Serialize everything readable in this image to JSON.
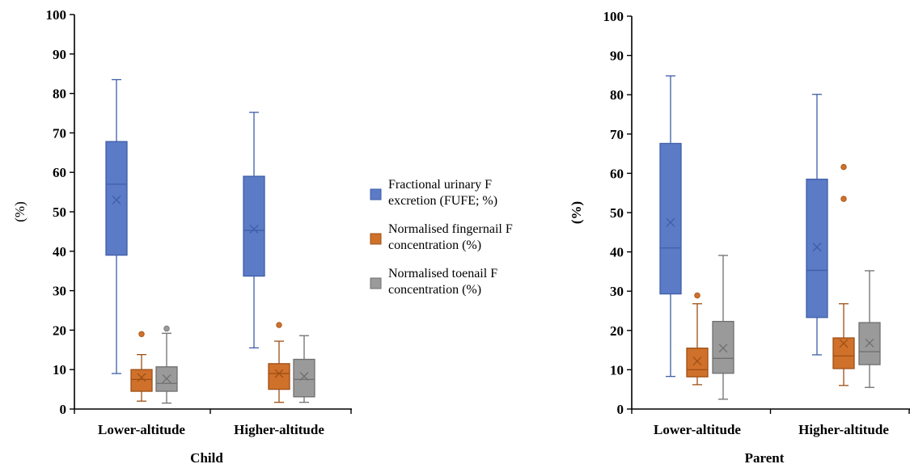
{
  "colors": {
    "series_fill": [
      "#5b7bc6",
      "#d0712b",
      "#9a9a9a"
    ],
    "series_stroke": [
      "#3f5ea8",
      "#9e4f14",
      "#6f6f6f"
    ],
    "axis": "#000000"
  },
  "legend": {
    "placement": "between-charts",
    "items": [
      [
        "Fractional urinary F",
        "excretion (FUFE; %)"
      ],
      [
        "Normalised fingernail F",
        "concentration (%)"
      ],
      [
        "Normalised toenail F",
        "concentration (%)"
      ]
    ]
  },
  "chart_data": [
    {
      "type": "box",
      "title": "",
      "xlabel": "Child",
      "ylabel": "(%)",
      "ylim": [
        0,
        100
      ],
      "yticks": [
        0,
        10,
        20,
        30,
        40,
        50,
        60,
        70,
        80,
        90,
        100
      ],
      "categories": [
        "Lower-altitude",
        "Higher-altitude"
      ],
      "series": [
        {
          "name": "Fractional urinary F excretion (FUFE; %)",
          "boxes": [
            {
              "min": 9,
              "q1": 39,
              "median": 57,
              "q3": 67.8,
              "max": 83.5,
              "mean": 53,
              "outliers": []
            },
            {
              "min": 15.5,
              "q1": 33.7,
              "median": 45.3,
              "q3": 59,
              "max": 75.2,
              "mean": 45.6,
              "outliers": []
            }
          ]
        },
        {
          "name": "Normalised fingernail F concentration (%)",
          "boxes": [
            {
              "min": 2,
              "q1": 4.5,
              "median": 7.5,
              "q3": 10,
              "max": 13.8,
              "mean": 8,
              "outliers": [
                19
              ]
            },
            {
              "min": 1.7,
              "q1": 5,
              "median": 9,
              "q3": 11.5,
              "max": 17.2,
              "mean": 9,
              "outliers": [
                21.3
              ]
            }
          ]
        },
        {
          "name": "Normalised toenail F concentration (%)",
          "boxes": [
            {
              "min": 1.5,
              "q1": 4.5,
              "median": 6.5,
              "q3": 10.7,
              "max": 19.2,
              "mean": 7.7,
              "outliers": [
                20.4
              ]
            },
            {
              "min": 1.7,
              "q1": 3.1,
              "median": 7.5,
              "q3": 12.6,
              "max": 18.6,
              "mean": 8.3,
              "outliers": []
            }
          ]
        }
      ]
    },
    {
      "type": "box",
      "title": "",
      "xlabel": "Parent",
      "ylabel": "(%)",
      "ylim": [
        0,
        100
      ],
      "yticks": [
        0,
        10,
        20,
        30,
        40,
        50,
        60,
        70,
        80,
        90,
        100
      ],
      "categories": [
        "Lower-altitude",
        "Higher-altitude"
      ],
      "series": [
        {
          "name": "Fractional urinary F excretion (FUFE; %)",
          "boxes": [
            {
              "min": 8.3,
              "q1": 29.3,
              "median": 41,
              "q3": 67.6,
              "max": 84.8,
              "mean": 47.5,
              "outliers": []
            },
            {
              "min": 13.8,
              "q1": 23.3,
              "median": 35.3,
              "q3": 58.5,
              "max": 80.1,
              "mean": 41.2,
              "outliers": []
            }
          ]
        },
        {
          "name": "Normalised fingernail F concentration (%)",
          "boxes": [
            {
              "min": 6.2,
              "q1": 8.2,
              "median": 10,
              "q3": 15.5,
              "max": 26.8,
              "mean": 12.2,
              "outliers": [
                28.9
              ]
            },
            {
              "min": 6,
              "q1": 10.3,
              "median": 13.5,
              "q3": 18.1,
              "max": 26.8,
              "mean": 16.7,
              "outliers": [
                53.5,
                61.6
              ]
            }
          ]
        },
        {
          "name": "Normalised toenail F concentration (%)",
          "boxes": [
            {
              "min": 2.5,
              "q1": 9.1,
              "median": 12.9,
              "q3": 22.3,
              "max": 39.1,
              "mean": 15.5,
              "outliers": []
            },
            {
              "min": 5.5,
              "q1": 11.3,
              "median": 14.6,
              "q3": 22,
              "max": 35.2,
              "mean": 16.8,
              "outliers": []
            }
          ]
        }
      ]
    }
  ]
}
